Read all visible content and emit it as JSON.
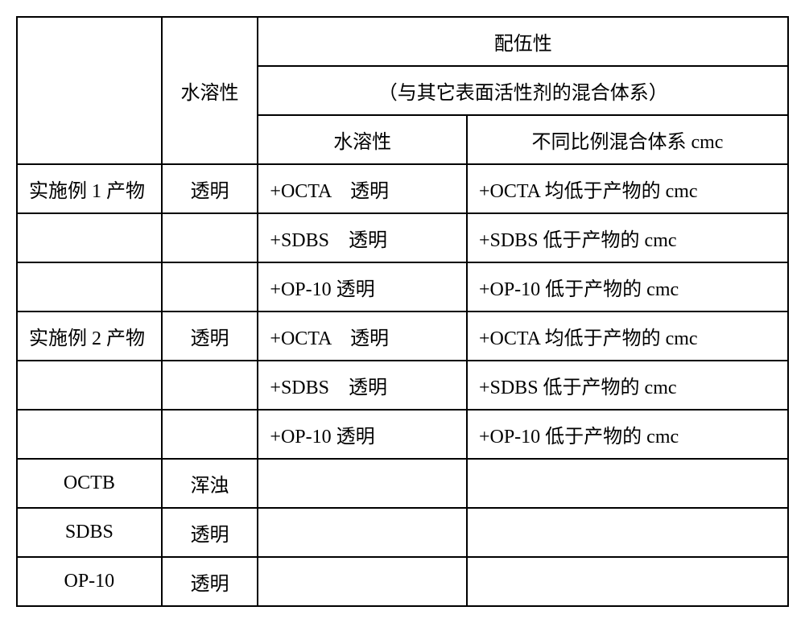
{
  "table": {
    "header": {
      "row_label_col": "",
      "solubility_header": "水溶性",
      "compatibility_header": "配伍性",
      "compatibility_subheader": "（与其它表面活性剂的混合体系）",
      "compat_solubility": "水溶性",
      "compat_cmc": "不同比例混合体系 cmc"
    },
    "rows": [
      {
        "label": "实施例 1 产物",
        "solubility": "透明",
        "compat_sol": "+OCTA　透明",
        "compat_cmc": "+OCTA 均低于产物的 cmc"
      },
      {
        "label": "",
        "solubility": "",
        "compat_sol": "+SDBS　透明",
        "compat_cmc": "+SDBS 低于产物的 cmc"
      },
      {
        "label": "",
        "solubility": "",
        "compat_sol": "+OP-10 透明",
        "compat_cmc": "+OP-10 低于产物的 cmc"
      },
      {
        "label": "实施例 2 产物",
        "solubility": "透明",
        "compat_sol": "+OCTA　透明",
        "compat_cmc": "+OCTA 均低于产物的 cmc"
      },
      {
        "label": "",
        "solubility": "",
        "compat_sol": "+SDBS　透明",
        "compat_cmc": "+SDBS 低于产物的 cmc"
      },
      {
        "label": "",
        "solubility": "",
        "compat_sol": "+OP-10 透明",
        "compat_cmc": "+OP-10 低于产物的 cmc"
      },
      {
        "label": "OCTB",
        "solubility": "浑浊",
        "compat_sol": "",
        "compat_cmc": ""
      },
      {
        "label": "SDBS",
        "solubility": "透明",
        "compat_sol": "",
        "compat_cmc": ""
      },
      {
        "label": "OP-10",
        "solubility": "透明",
        "compat_sol": "",
        "compat_cmc": ""
      }
    ]
  }
}
